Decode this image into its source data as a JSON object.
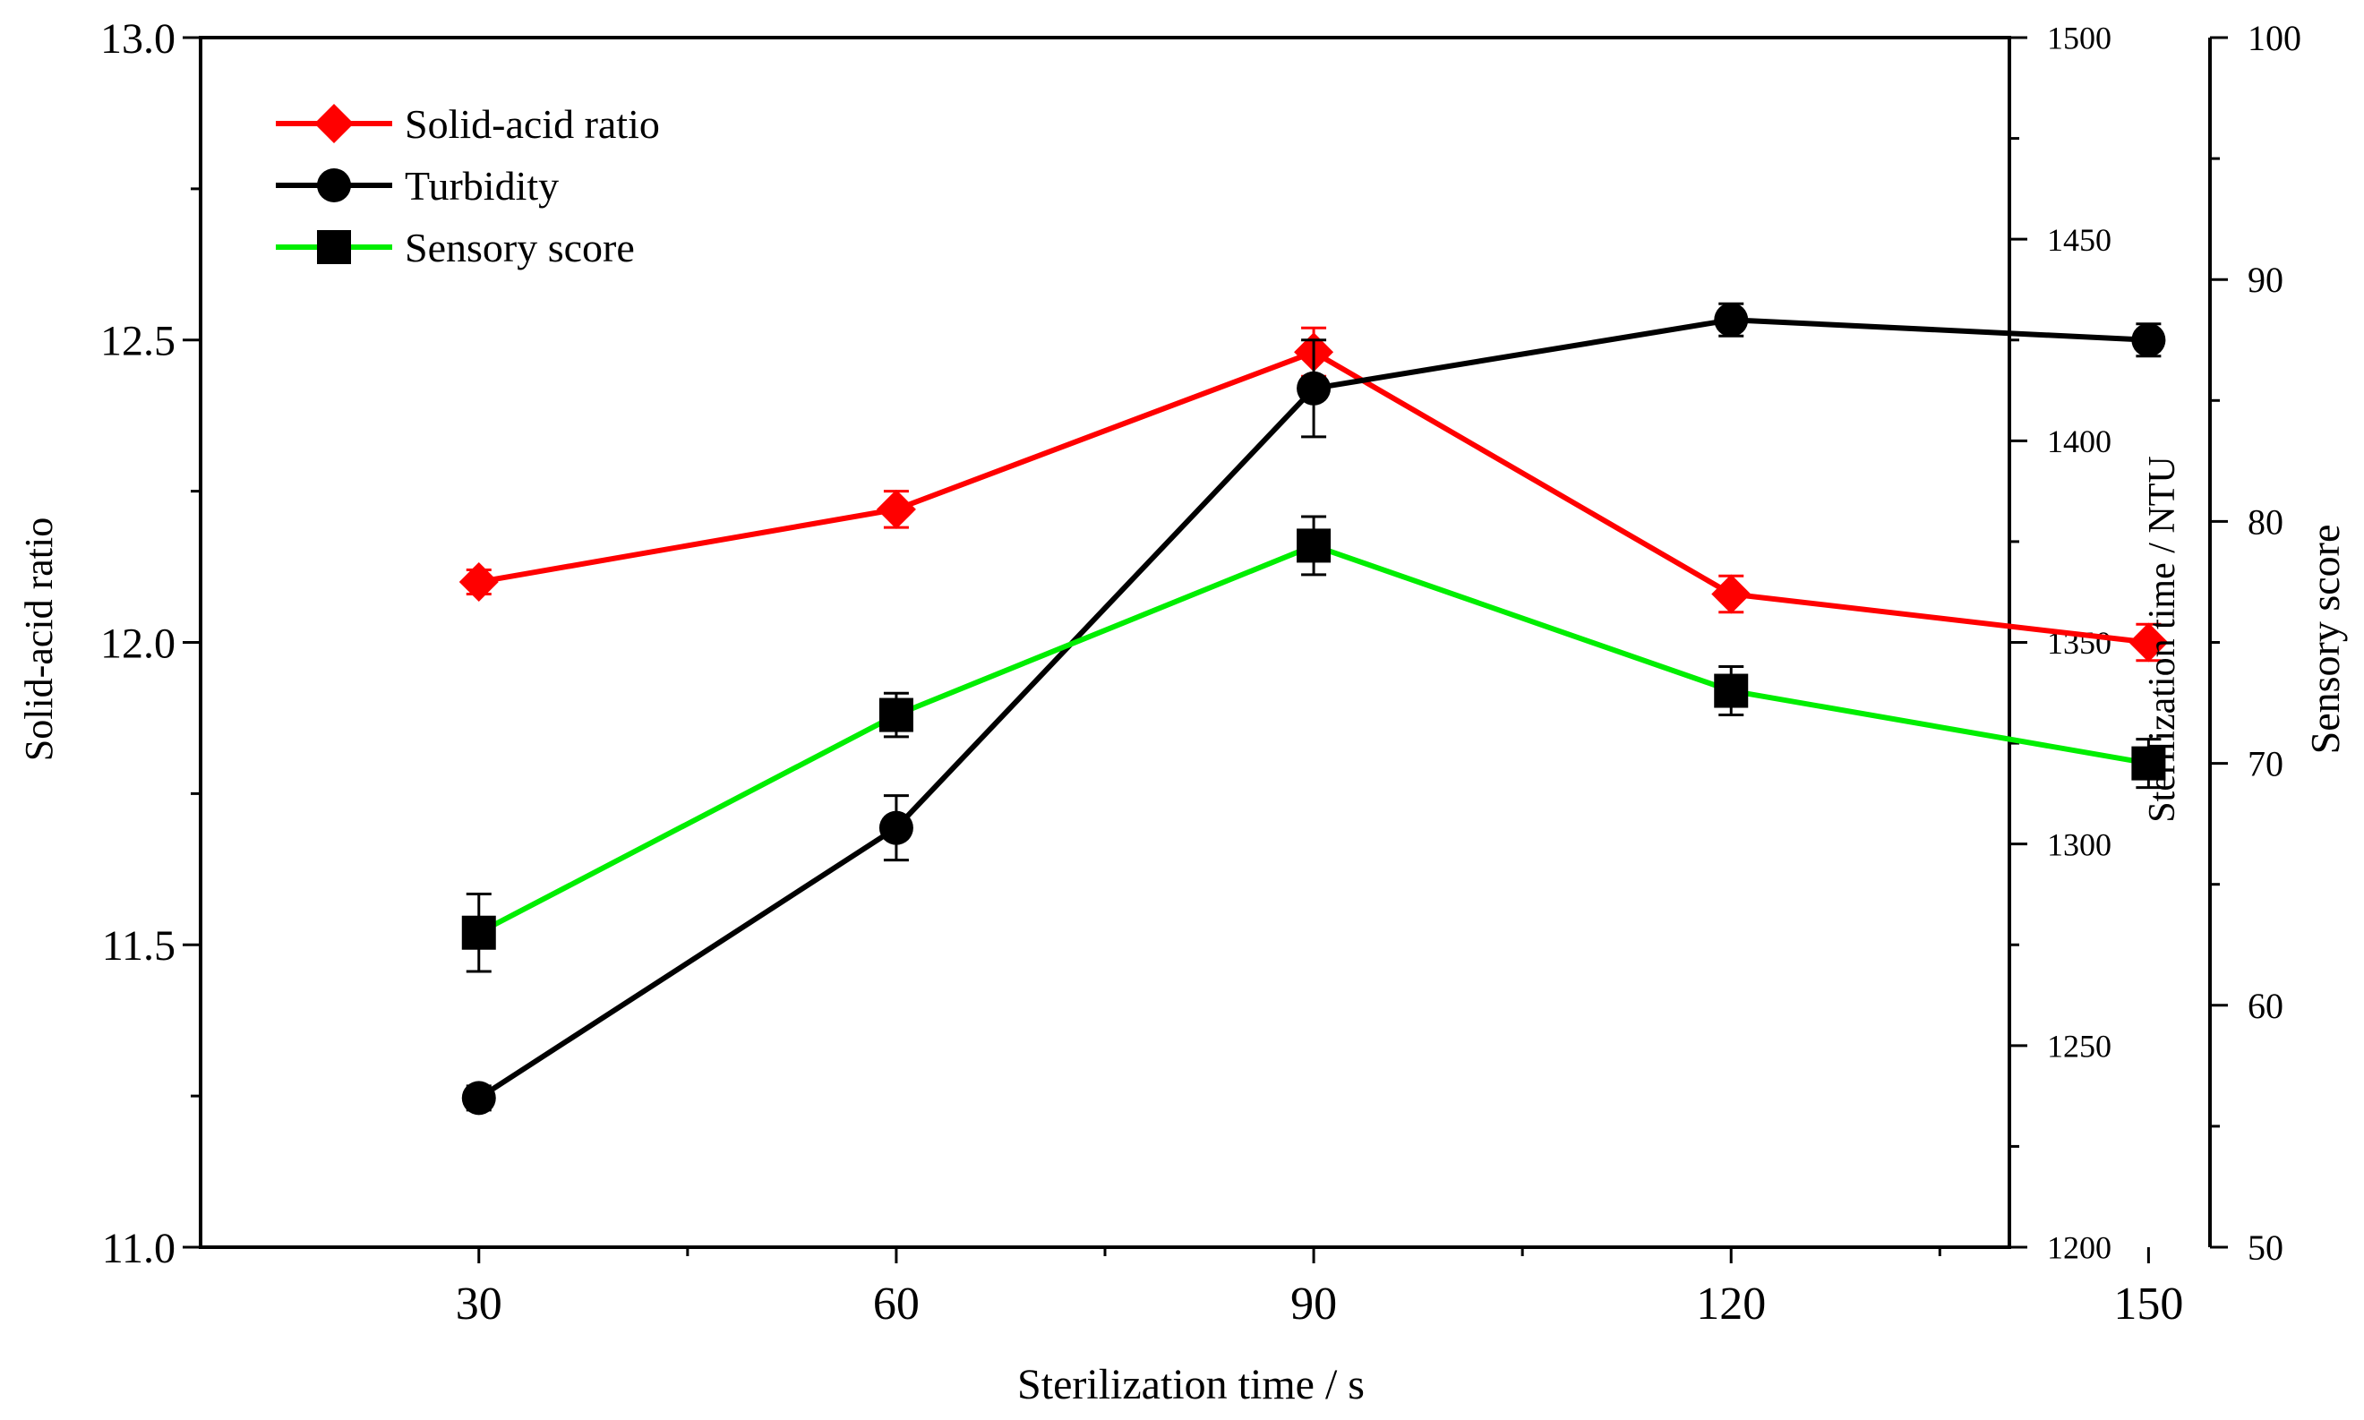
{
  "chart_data": {
    "type": "line",
    "xlabel": "Sterilization time / s",
    "x": [
      30,
      60,
      90,
      120,
      150
    ],
    "x_ticks": [
      "30",
      "60",
      "90",
      "120",
      "150"
    ],
    "xlim": [
      10,
      140
    ],
    "y_axes": [
      {
        "id": "left",
        "label": "Solid-acid ratio",
        "ylim": [
          11.0,
          13.0
        ],
        "ticks": [
          "11.0",
          "11.5",
          "12.0",
          "12.5",
          "13.0"
        ]
      },
      {
        "id": "right1",
        "label": "Sterilization time / NTU",
        "ylim": [
          1200,
          1500
        ],
        "ticks": [
          "1200",
          "1250",
          "1300",
          "1350",
          "1400",
          "1450",
          "1500"
        ]
      },
      {
        "id": "right2",
        "label": "Sensory score",
        "ylim": [
          50,
          100
        ],
        "ticks": [
          "50",
          "60",
          "70",
          "80",
          "90",
          "100"
        ]
      }
    ],
    "series": [
      {
        "name": "Solid-acid ratio",
        "axis": "left",
        "color": "#ff0000",
        "marker": "diamond",
        "values": [
          12.1,
          12.22,
          12.48,
          12.08,
          12.0
        ],
        "errors": [
          0.02,
          0.03,
          0.04,
          0.03,
          0.03
        ]
      },
      {
        "name": "Turbidity",
        "axis": "right1",
        "color": "#000000",
        "marker": "circle",
        "values": [
          1237,
          1304,
          1413,
          1430,
          1425
        ],
        "errors": [
          3,
          8,
          12,
          4,
          4
        ]
      },
      {
        "name": "Sensory score",
        "axis": "right2",
        "color": "#00ee00",
        "marker": "square",
        "values": [
          63.0,
          72.0,
          79.0,
          73.0,
          70.0
        ],
        "errors": [
          1.6,
          0.9,
          1.2,
          1.0,
          1.0
        ]
      }
    ],
    "legend": "top-left"
  }
}
